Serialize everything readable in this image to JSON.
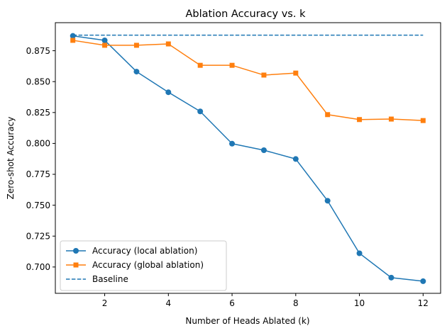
{
  "chart_data": {
    "type": "line",
    "title": "Ablation Accuracy vs. k",
    "xlabel": "Number of Heads Ablated (k)",
    "ylabel": "Zero-shot Accuracy",
    "x": [
      1,
      2,
      3,
      4,
      5,
      6,
      7,
      8,
      9,
      10,
      11,
      12
    ],
    "xlim": [
      0.45,
      12.55
    ],
    "ylim": [
      0.6787,
      0.8977
    ],
    "x_ticks": [
      "2",
      "4",
      "6",
      "8",
      "10",
      "12"
    ],
    "x_tick_values": [
      2,
      4,
      6,
      8,
      10,
      12
    ],
    "y_ticks": [
      "0.700",
      "0.725",
      "0.750",
      "0.775",
      "0.800",
      "0.825",
      "0.850",
      "0.875"
    ],
    "y_tick_values": [
      0.7,
      0.725,
      0.75,
      0.775,
      0.8,
      0.825,
      0.85,
      0.875
    ],
    "grid": false,
    "legend_position": "lower-left",
    "series": [
      {
        "name": "Accuracy (local ablation)",
        "color": "#1f77b4",
        "marker": "circle",
        "style": "solid",
        "values": [
          0.887,
          0.8834,
          0.8581,
          0.8414,
          0.8259,
          0.7998,
          0.7945,
          0.7874,
          0.7536,
          0.7111,
          0.6914,
          0.6885
        ]
      },
      {
        "name": "Accuracy (global ablation)",
        "color": "#ff7f0e",
        "marker": "square",
        "style": "solid",
        "values": [
          0.8834,
          0.8794,
          0.8794,
          0.8805,
          0.8632,
          0.8632,
          0.8553,
          0.8569,
          0.8233,
          0.8193,
          0.8197,
          0.8185
        ]
      },
      {
        "name": "Baseline",
        "color": "#1f77b4",
        "marker": "none",
        "style": "dashed",
        "values": [
          0.8876,
          0.8876,
          0.8876,
          0.8876,
          0.8876,
          0.8876,
          0.8876,
          0.8876,
          0.8876,
          0.8876,
          0.8876,
          0.8876
        ]
      }
    ]
  }
}
